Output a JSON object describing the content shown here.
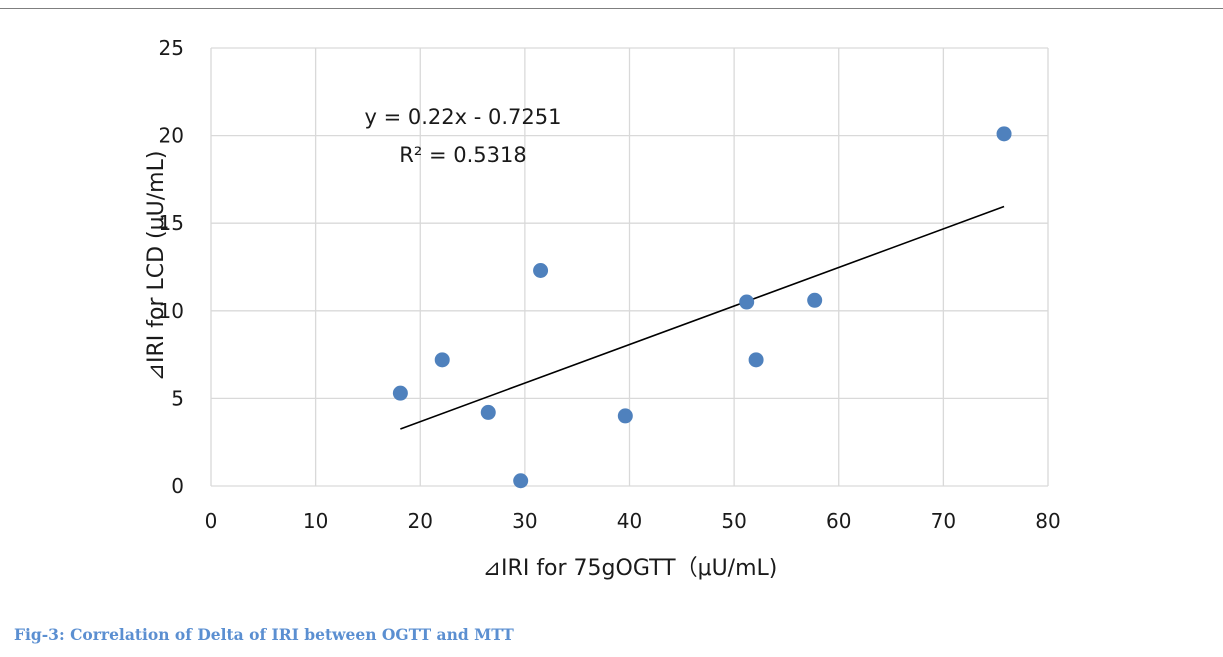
{
  "caption": "Fig-3: Correlation of Delta of IRI between OGTT and MTT",
  "chart_data": {
    "type": "scatter",
    "xlabel": "⊿IRI for 75gOGTT（μU/mL)",
    "ylabel": "⊿IRI for LCD (μU/mL)",
    "xlim": [
      0,
      80
    ],
    "ylim": [
      0,
      25
    ],
    "x_ticks": [
      0,
      10,
      20,
      30,
      40,
      50,
      60,
      70,
      80
    ],
    "y_ticks": [
      0,
      5,
      10,
      15,
      20,
      25
    ],
    "grid": true,
    "marker_color": "#4f81bd",
    "series": [
      {
        "points": [
          {
            "x": 18.1,
            "y": 5.3
          },
          {
            "x": 22.1,
            "y": 7.2
          },
          {
            "x": 26.5,
            "y": 4.2
          },
          {
            "x": 29.6,
            "y": 0.3
          },
          {
            "x": 31.5,
            "y": 12.3
          },
          {
            "x": 39.6,
            "y": 4.0
          },
          {
            "x": 51.2,
            "y": 10.5
          },
          {
            "x": 52.1,
            "y": 7.2
          },
          {
            "x": 57.7,
            "y": 10.6
          },
          {
            "x": 75.8,
            "y": 20.1
          }
        ]
      }
    ],
    "trendline": {
      "type": "linear",
      "slope": 0.22,
      "intercept": -0.7251,
      "x_range": [
        18.1,
        75.8
      ],
      "color": "#000000",
      "equation": "y = 0.22x - 0.7251",
      "r_squared": "R² = 0.5318"
    }
  }
}
